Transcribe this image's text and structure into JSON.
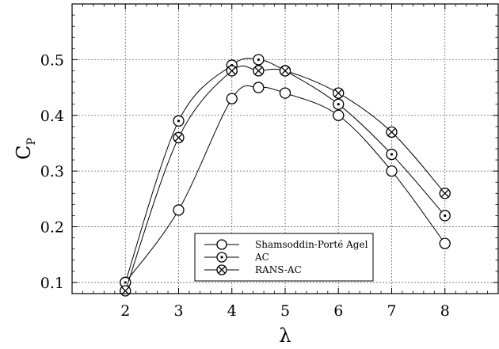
{
  "chart_data": {
    "type": "line",
    "title": "",
    "xlabel": "λ",
    "ylabel": "C",
    "ylabel_subscript": "P",
    "xlim": [
      1,
      9
    ],
    "ylim": [
      0.08,
      0.6
    ],
    "x_ticks": [
      2,
      3,
      4,
      5,
      6,
      7,
      8
    ],
    "y_ticks": [
      0.1,
      0.2,
      0.3,
      0.4,
      0.5
    ],
    "y_tick_labels": [
      "0.1",
      "0.2",
      "0.3",
      "0.4",
      "0.5"
    ],
    "grid": true,
    "legend_position": "bottom-center",
    "series": [
      {
        "name": "Shamsoddin-Porté Agel",
        "marker": "circle",
        "x": [
          2,
          3,
          4,
          4.5,
          5,
          6,
          7,
          8
        ],
        "y": [
          0.1,
          0.23,
          0.43,
          0.45,
          0.44,
          0.4,
          0.3,
          0.17
        ]
      },
      {
        "name": "AC",
        "marker": "circle-dot",
        "x": [
          2,
          3,
          4,
          4.5,
          5,
          6,
          7,
          8
        ],
        "y": [
          0.1,
          0.39,
          0.49,
          0.5,
          0.48,
          0.42,
          0.33,
          0.22
        ]
      },
      {
        "name": "RANS-AC",
        "marker": "circle-x",
        "x": [
          2,
          3,
          4,
          4.5,
          5,
          6,
          7,
          8
        ],
        "y": [
          0.085,
          0.36,
          0.48,
          0.48,
          0.48,
          0.44,
          0.37,
          0.26
        ]
      }
    ]
  }
}
